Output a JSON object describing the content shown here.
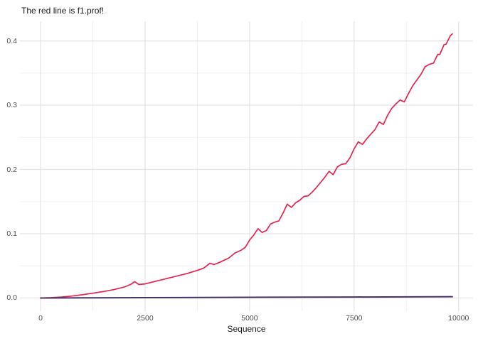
{
  "title": "The red line is f1.prof!",
  "colors": {
    "background": "#ffffff",
    "grid_major": "#e3e3e3",
    "grid_minor": "#f0f0f0",
    "red_line": "#e6234e",
    "dark_line": "#4a3364",
    "tick_text": "#4d4d4d",
    "title_text": "#1a1a1a"
  },
  "axes": {
    "x": {
      "label": "Sequence",
      "tick_values": [
        0,
        2500,
        5000,
        7500,
        10000
      ],
      "tick_labels": [
        "0",
        "2500",
        "5000",
        "7500",
        "10000"
      ],
      "minor_ticks": [
        1250,
        3750,
        6250,
        8750
      ],
      "domain": [
        -495,
        10345
      ]
    },
    "y": {
      "label": "",
      "tick_values": [
        0,
        0.1,
        0.2,
        0.3,
        0.4
      ],
      "tick_labels": [
        "0.0",
        "0.1",
        "0.2",
        "0.3",
        "0.4"
      ],
      "minor_ticks": [
        0.05,
        0.15,
        0.25,
        0.35
      ],
      "domain": [
        -0.0205,
        0.4305
      ]
    }
  },
  "chart_data": {
    "type": "line",
    "title": "The red line is f1.prof!",
    "xlabel": "Sequence",
    "ylabel": "",
    "xlim": [
      0,
      10000
    ],
    "ylim": [
      0,
      0.43
    ],
    "grid": "on",
    "legend": "none",
    "series": [
      {
        "name": "f1.prof (red line)",
        "color": "#e6234e",
        "width": 1.7,
        "x": [
          0,
          250,
          500,
          750,
          1000,
          1250,
          1500,
          1750,
          2000,
          2150,
          2250,
          2350,
          2500,
          2750,
          3000,
          3250,
          3500,
          3750,
          3900,
          4050,
          4150,
          4300,
          4500,
          4650,
          4800,
          4900,
          5000,
          5100,
          5200,
          5300,
          5400,
          5500,
          5600,
          5700,
          5800,
          5900,
          6000,
          6100,
          6200,
          6300,
          6400,
          6500,
          6600,
          6700,
          6800,
          6900,
          7000,
          7100,
          7200,
          7300,
          7400,
          7500,
          7600,
          7700,
          7800,
          7900,
          8000,
          8100,
          8200,
          8300,
          8400,
          8500,
          8600,
          8700,
          8800,
          8900,
          9000,
          9100,
          9200,
          9300,
          9400,
          9500,
          9550,
          9650,
          9700,
          9800,
          9850
        ],
        "y": [
          0,
          0.0005,
          0.0015,
          0.003,
          0.005,
          0.0075,
          0.01,
          0.013,
          0.017,
          0.021,
          0.0255,
          0.021,
          0.022,
          0.026,
          0.03,
          0.034,
          0.038,
          0.043,
          0.0465,
          0.054,
          0.052,
          0.056,
          0.062,
          0.07,
          0.0745,
          0.079,
          0.09,
          0.098,
          0.108,
          0.102,
          0.105,
          0.115,
          0.118,
          0.12,
          0.132,
          0.146,
          0.141,
          0.148,
          0.152,
          0.158,
          0.159,
          0.165,
          0.172,
          0.18,
          0.188,
          0.197,
          0.192,
          0.204,
          0.208,
          0.209,
          0.218,
          0.232,
          0.243,
          0.239,
          0.2475,
          0.255,
          0.262,
          0.274,
          0.27,
          0.284,
          0.295,
          0.302,
          0.308,
          0.305,
          0.318,
          0.33,
          0.339,
          0.348,
          0.36,
          0.3635,
          0.3655,
          0.379,
          0.379,
          0.394,
          0.395,
          0.408,
          0.411
        ]
      },
      {
        "name": "dark flat line",
        "color": "#4a3364",
        "width": 2,
        "x": [
          0,
          1000,
          2500,
          5000,
          7500,
          9850
        ],
        "y": [
          0,
          0.0002,
          0.0005,
          0.001,
          0.0015,
          0.002
        ]
      }
    ]
  }
}
